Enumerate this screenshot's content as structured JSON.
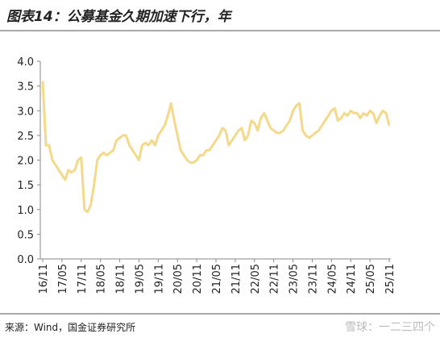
{
  "title": "图表14：公募基金久期加速下行，年",
  "chart_data": {
    "type": "line",
    "categories": [
      "16/11",
      null,
      null,
      null,
      null,
      null,
      "17/05",
      null,
      null,
      null,
      null,
      null,
      "17/11",
      null,
      null,
      null,
      null,
      null,
      "18/05",
      null,
      null,
      null,
      null,
      null,
      "18/11",
      null,
      null,
      null,
      null,
      null,
      "19/05",
      null,
      null,
      null,
      null,
      null,
      "19/11",
      null,
      null,
      null,
      null,
      null,
      "20/05",
      null,
      null,
      null,
      null,
      null,
      "20/11",
      null,
      null,
      null,
      null,
      null,
      "21/05",
      null,
      null,
      null,
      null,
      null,
      "21/11",
      null,
      null,
      null,
      null,
      null,
      "22/05",
      null,
      null,
      null,
      null,
      null,
      "22/11",
      null,
      null,
      null,
      null,
      null,
      "23/05",
      null,
      null,
      null,
      null,
      null,
      "23/11",
      null,
      null,
      null,
      null,
      null,
      "24/05",
      null,
      null,
      null,
      null,
      null,
      "24/11",
      null,
      null,
      null,
      null,
      null,
      "25/05",
      null,
      null,
      null,
      null,
      null,
      "25/11"
    ],
    "values": [
      3.6,
      2.3,
      2.3,
      2.0,
      1.9,
      1.8,
      1.7,
      1.6,
      1.8,
      1.75,
      1.8,
      2.0,
      2.05,
      1.0,
      0.95,
      1.1,
      1.5,
      2.0,
      2.1,
      2.15,
      2.1,
      2.15,
      2.2,
      2.4,
      2.45,
      2.5,
      2.5,
      2.3,
      2.2,
      2.1,
      2.0,
      2.3,
      2.35,
      2.3,
      2.4,
      2.3,
      2.5,
      2.6,
      2.7,
      2.9,
      3.15,
      2.8,
      2.5,
      2.2,
      2.1,
      2.0,
      1.95,
      1.95,
      2.0,
      2.1,
      2.1,
      2.2,
      2.2,
      2.3,
      2.4,
      2.5,
      2.65,
      2.6,
      2.3,
      2.4,
      2.5,
      2.6,
      2.65,
      2.4,
      2.5,
      2.8,
      2.75,
      2.6,
      2.85,
      2.95,
      2.8,
      2.65,
      2.6,
      2.55,
      2.55,
      2.6,
      2.7,
      2.8,
      3.0,
      3.1,
      3.15,
      2.6,
      2.5,
      2.45,
      2.5,
      2.55,
      2.6,
      2.7,
      2.8,
      2.9,
      3.0,
      3.05,
      2.8,
      2.85,
      2.95,
      2.9,
      3.0,
      2.95,
      2.95,
      2.85,
      2.95,
      2.9,
      3.0,
      2.95,
      2.75,
      2.9,
      3.0,
      2.95,
      2.7
    ],
    "color": "#f5d98a",
    "ylim": [
      0,
      4
    ],
    "yticks": [
      {
        "value": 0,
        "label": "0.0"
      },
      {
        "value": 0.5,
        "label": "0.5"
      },
      {
        "value": 1,
        "label": "1.0"
      },
      {
        "value": 1.5,
        "label": "1.5"
      },
      {
        "value": 2,
        "label": "2.0"
      },
      {
        "value": 2.5,
        "label": "2.5"
      },
      {
        "value": 3,
        "label": "3.0"
      },
      {
        "value": 3.5,
        "label": "3.5"
      },
      {
        "value": 4,
        "label": "4.0"
      }
    ]
  },
  "source": "来源：Wind，国金证券研究所",
  "watermark": "雪球：一二三四个"
}
